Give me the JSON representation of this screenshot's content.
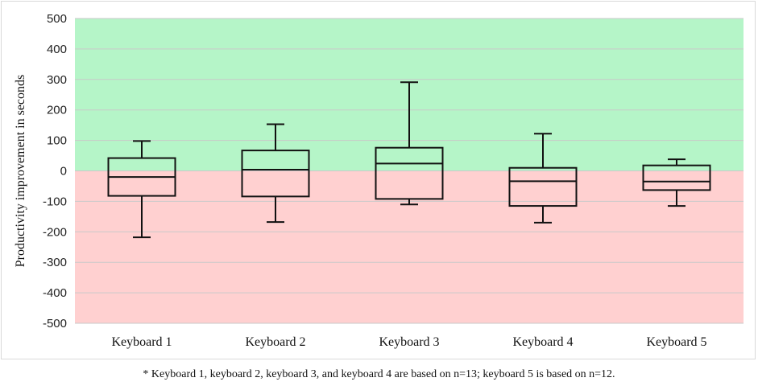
{
  "chart_data": {
    "type": "boxplot",
    "ylabel": "Productivity improvement in seconds",
    "ylim": [
      -500,
      500
    ],
    "ytick_step": 100,
    "bands": [
      {
        "from": 0,
        "to": 500,
        "color": "#b5f5c8"
      },
      {
        "from": -500,
        "to": 0,
        "color": "#ffd0d0"
      }
    ],
    "gridline_color": "#c9c9c9",
    "box_stroke_color": "#111111",
    "grid": true,
    "legend": "none",
    "categories": [
      "Keyboard 1",
      "Keyboard 2",
      "Keyboard 3",
      "Keyboard 4",
      "Keyboard 5"
    ],
    "boxes": [
      {
        "min": -218,
        "q1": -82,
        "median": -20,
        "q3": 42,
        "max": 98
      },
      {
        "min": -168,
        "q1": -84,
        "median": 4,
        "q3": 67,
        "max": 153
      },
      {
        "min": -110,
        "q1": -92,
        "median": 24,
        "q3": 76,
        "max": 291
      },
      {
        "min": -170,
        "q1": -115,
        "median": -34,
        "q3": 10,
        "max": 122
      },
      {
        "min": -115,
        "q1": -63,
        "median": -35,
        "q3": 18,
        "max": 38
      }
    ]
  },
  "footnote": "* Keyboard 1, keyboard 2, keyboard 3, and keyboard 4 are based on n=13; keyboard 5 is based on n=12."
}
